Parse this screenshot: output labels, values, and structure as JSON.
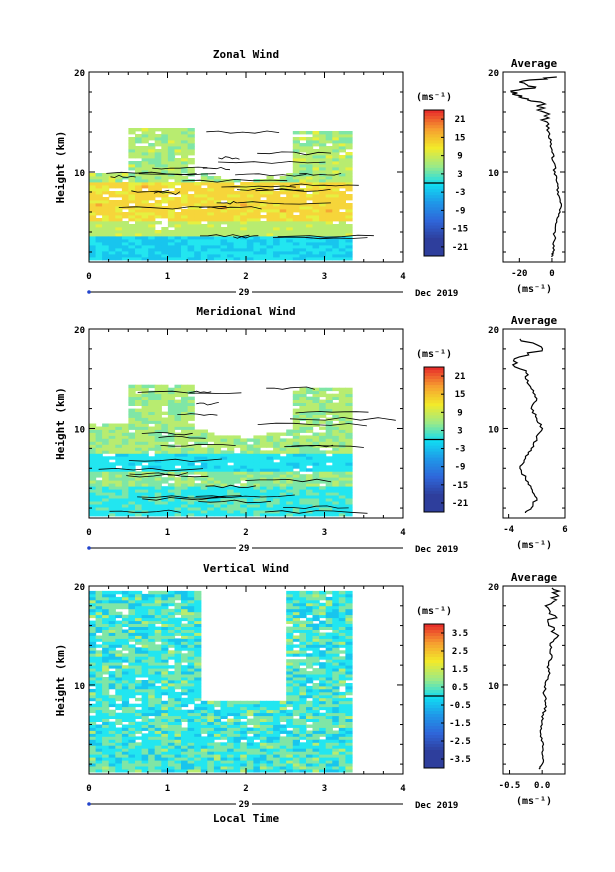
{
  "figure": {
    "month_label": "Dec 2019",
    "day_label": "29",
    "x_axis_title": "Local Time",
    "colorbar_unit_label": "(ms⁻¹)",
    "avg_unit_label": "(ms⁻¹)"
  },
  "chart_data": [
    {
      "type": "heatmap",
      "title": "Zonal Wind",
      "ylabel": "Height (km)",
      "xlim": [
        0,
        4
      ],
      "ylim": [
        1,
        20
      ],
      "x_ticks": [
        "0",
        "1",
        "2",
        "3",
        "4"
      ],
      "y_ticks": [
        {
          "value": 10,
          "label": "10"
        },
        {
          "value": 20,
          "label": "20"
        }
      ],
      "data_x_range": [
        0,
        3.35
      ],
      "levels": [
        {
          "value": 21,
          "label": "21"
        },
        {
          "value": 15,
          "label": "15"
        },
        {
          "value": 9,
          "label": "9"
        },
        {
          "value": 3,
          "label": "3"
        },
        {
          "value": -3,
          "label": "-3"
        },
        {
          "value": -9,
          "label": "-9"
        },
        {
          "value": -15,
          "label": "-15"
        },
        {
          "value": -21,
          "label": "-21"
        }
      ],
      "colorbar_range": [
        -24,
        24
      ],
      "profile": {
        "title": "Average",
        "xlim": [
          -30,
          8
        ],
        "x_ticks": [
          {
            "value": -20,
            "label": "-20"
          },
          {
            "value": 0,
            "label": "0"
          }
        ],
        "heights": [
          1.5,
          2,
          3,
          4,
          5,
          6,
          7,
          8,
          9,
          10,
          11,
          12,
          13,
          14,
          15,
          16,
          17,
          17.5,
          18,
          18.5,
          19,
          19.5
        ],
        "values": [
          0,
          0.5,
          1,
          2,
          3,
          5,
          5,
          4,
          3,
          2,
          1,
          0,
          -1,
          -2,
          -3,
          -5,
          -7,
          -20,
          -25,
          -10,
          -20,
          3
        ]
      }
    },
    {
      "type": "heatmap",
      "title": "Meridional Wind",
      "ylabel": "Height (km)",
      "xlim": [
        0,
        4
      ],
      "ylim": [
        1,
        20
      ],
      "x_ticks": [
        "0",
        "1",
        "2",
        "3",
        "4"
      ],
      "y_ticks": [
        {
          "value": 10,
          "label": "10"
        },
        {
          "value": 20,
          "label": "20"
        }
      ],
      "data_x_range": [
        0,
        3.35
      ],
      "levels": [
        {
          "value": 21,
          "label": "21"
        },
        {
          "value": 15,
          "label": "15"
        },
        {
          "value": 9,
          "label": "9"
        },
        {
          "value": 3,
          "label": "3"
        },
        {
          "value": -3,
          "label": "-3"
        },
        {
          "value": -9,
          "label": "-9"
        },
        {
          "value": -15,
          "label": "-15"
        },
        {
          "value": -21,
          "label": "-21"
        }
      ],
      "colorbar_range": [
        -24,
        24
      ],
      "profile": {
        "title": "Average",
        "xlim": [
          -5,
          6
        ],
        "x_ticks": [
          {
            "value": -4,
            "label": "-4"
          },
          {
            "value": 6,
            "label": "6"
          }
        ],
        "heights": [
          1.5,
          2,
          3,
          4,
          5,
          6,
          7,
          8,
          9,
          10,
          11,
          12,
          13,
          14,
          15,
          16,
          17,
          18,
          19
        ],
        "values": [
          -1,
          0,
          1,
          0,
          -1,
          -2,
          -1,
          0,
          1,
          2,
          1,
          0,
          1,
          0,
          -1,
          -2,
          -3,
          2,
          -2
        ]
      }
    },
    {
      "type": "heatmap",
      "title": "Vertical Wind",
      "ylabel": "Height (km)",
      "xlim": [
        0,
        4
      ],
      "ylim": [
        1,
        20
      ],
      "x_ticks": [
        "0",
        "1",
        "2",
        "3",
        "4"
      ],
      "y_ticks": [
        {
          "value": 10,
          "label": "10"
        },
        {
          "value": 20,
          "label": "20"
        }
      ],
      "data_x_range": [
        0,
        3.35
      ],
      "levels": [
        {
          "value": 3.5,
          "label": "3.5"
        },
        {
          "value": 2.5,
          "label": "2.5"
        },
        {
          "value": 1.5,
          "label": "1.5"
        },
        {
          "value": 0.5,
          "label": "0.5"
        },
        {
          "value": -0.5,
          "label": "-0.5"
        },
        {
          "value": -1.5,
          "label": "-1.5"
        },
        {
          "value": -2.5,
          "label": "-2.5"
        },
        {
          "value": -3.5,
          "label": "-3.5"
        }
      ],
      "colorbar_range": [
        -4,
        4
      ],
      "profile": {
        "title": "Average",
        "xlim": [
          -0.6,
          0.35
        ],
        "x_ticks": [
          {
            "value": -0.5,
            "label": "-0.5"
          },
          {
            "value": 0,
            "label": "0.0"
          }
        ],
        "heights": [
          1.5,
          2,
          3,
          4,
          5,
          6,
          7,
          8,
          9,
          10,
          11,
          12,
          13,
          14,
          15,
          16,
          17,
          18,
          19,
          19.8
        ],
        "values": [
          -0.05,
          0,
          0,
          0.02,
          -0.02,
          0,
          0.02,
          0.05,
          0.03,
          0.05,
          0.1,
          0.1,
          0.15,
          0.12,
          0.25,
          0.1,
          0.2,
          0.05,
          0.25,
          0.15
        ]
      }
    }
  ]
}
